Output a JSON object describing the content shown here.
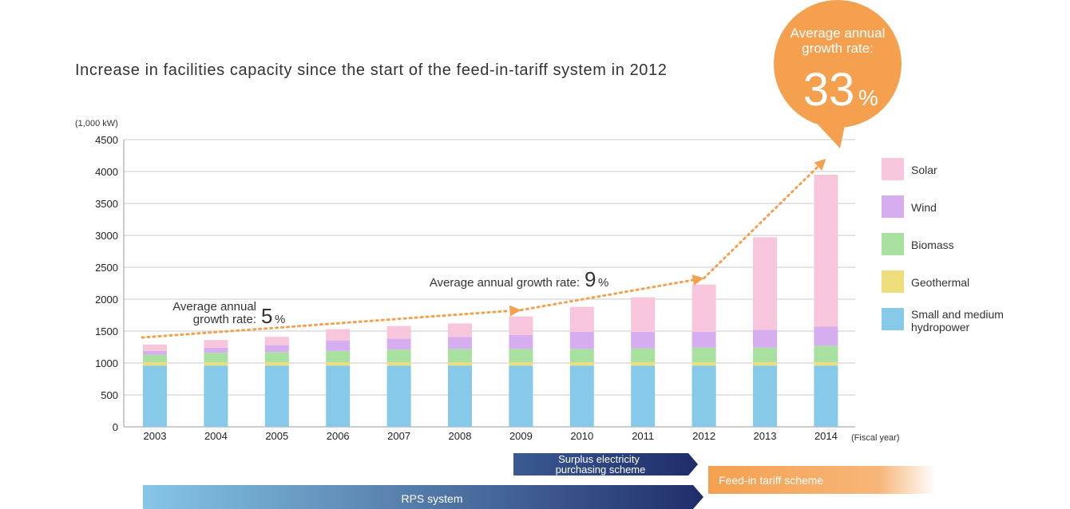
{
  "chart_data": {
    "type": "bar",
    "stacked": true,
    "title": "Increase in facilities capacity since the start of the feed-in-tariff system in 2012",
    "ylabel": "(1,000 kW)",
    "xlabel": "(Fiscal year)",
    "ylim": [
      0,
      4500
    ],
    "yticks": [
      0,
      500,
      1000,
      1500,
      2000,
      2500,
      3000,
      3500,
      4000,
      4500
    ],
    "grid": true,
    "legend_position": "right",
    "categories": [
      "2003",
      "2004",
      "2005",
      "2006",
      "2007",
      "2008",
      "2009",
      "2010",
      "2011",
      "2012",
      "2013",
      "2014"
    ],
    "series": [
      {
        "name": "Small and medium hydropower",
        "color": "#86c9e8",
        "values": [
          960,
          960,
          960,
          960,
          960,
          960,
          960,
          960,
          960,
          960,
          960,
          960
        ]
      },
      {
        "name": "Geothermal",
        "color": "#eede7b",
        "values": [
          50,
          50,
          50,
          50,
          50,
          50,
          50,
          50,
          50,
          50,
          50,
          50
        ]
      },
      {
        "name": "Biomass",
        "color": "#a8e0a0",
        "values": [
          120,
          150,
          160,
          180,
          200,
          210,
          210,
          210,
          220,
          230,
          230,
          260
        ]
      },
      {
        "name": "Wind",
        "color": "#d6aef0",
        "values": [
          60,
          80,
          110,
          160,
          170,
          190,
          220,
          270,
          260,
          250,
          280,
          300
        ]
      },
      {
        "name": "Solar",
        "color": "#f8c6dc",
        "values": [
          100,
          120,
          130,
          180,
          200,
          210,
          290,
          390,
          540,
          740,
          1450,
          2380
        ]
      }
    ],
    "legend_order": [
      "Solar",
      "Wind",
      "Biomass",
      "Geothermal",
      "Small and medium hydropower"
    ],
    "annotations": {
      "growth_2003_2009": {
        "line1": "Average annual",
        "line2": "growth rate:",
        "value": "5",
        "unit": "%"
      },
      "growth_2009_2012": {
        "text": "Average annual growth rate:",
        "value": "9",
        "unit": "%"
      },
      "growth_2012_2014": {
        "line1": "Average annual",
        "line2": "growth rate:",
        "value": "33",
        "unit": "%",
        "color": "#f4a04f"
      }
    },
    "trend_points": [
      {
        "x": "2003",
        "y": 1400
      },
      {
        "x": "2009",
        "y": 1830
      },
      {
        "x": "2012",
        "y": 2330
      },
      {
        "x": "2014",
        "y": 4200
      }
    ],
    "schemes": {
      "surplus": {
        "line1": "Surplus electricity",
        "line2": "purchasing scheme",
        "from": "2009",
        "to": "2012",
        "color": "#2f4b85"
      },
      "fit": {
        "label": "Feed-in tariff scheme",
        "from": "2012",
        "color": "#f5a35a"
      },
      "rps": {
        "label": "RPS system",
        "from": "2003",
        "to": "2012",
        "color": "#3d5d96"
      }
    }
  }
}
